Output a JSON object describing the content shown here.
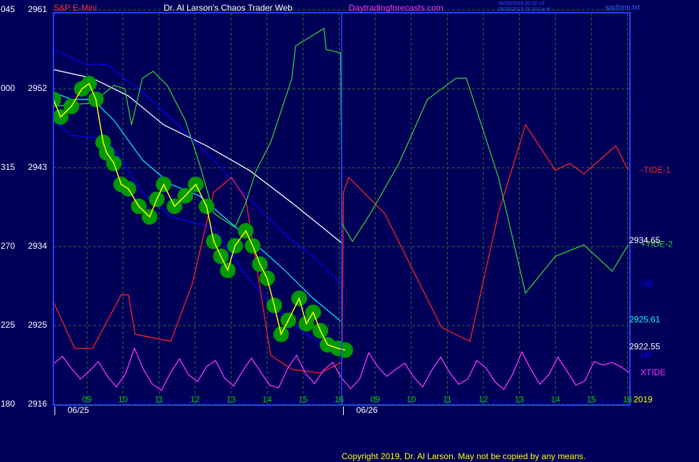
{
  "chart_data": {
    "type": "line",
    "title": "Dr. Al Larson's Chaos Trader Web",
    "instrument": "S&P E-Mini",
    "website": "Daytradingforecasts.com",
    "timestamp_lines": [
      "06/25/2019 20:20 UT",
      "06/25/2019 15:20 Local"
    ],
    "file_name": "spcform.txt",
    "copyright": "Copyright 2019, Dr. Al Larson. May not be copied by any means.",
    "year": "2019",
    "dates": [
      {
        "value": 0.07,
        "label": "06/25"
      },
      {
        "value": 8.08,
        "label": "06/26"
      }
    ],
    "xlim": [
      0.07,
      16.07
    ],
    "xticks": [
      {
        "value": 1,
        "label": "09"
      },
      {
        "value": 2,
        "label": "10"
      },
      {
        "value": 3,
        "label": "11"
      },
      {
        "value": 4,
        "label": "12"
      },
      {
        "value": 5,
        "label": "13"
      },
      {
        "value": 6,
        "label": "14"
      },
      {
        "value": 7,
        "label": "15"
      },
      {
        "value": 8,
        "label": "16"
      },
      {
        "value": 9,
        "label": "09"
      },
      {
        "value": 10,
        "label": "10"
      },
      {
        "value": 11,
        "label": "11"
      },
      {
        "value": 12,
        "label": "12"
      },
      {
        "value": 13,
        "label": "13"
      },
      {
        "value": 14,
        "label": "14"
      },
      {
        "value": 15,
        "label": "15"
      },
      {
        "value": 16,
        "label": "16"
      }
    ],
    "ylim": [
      2916,
      2961
    ],
    "yticks": [
      2916,
      2925,
      2934,
      2943,
      2952,
      2961
    ],
    "y2lim": [
      180,
      405
    ],
    "y2ticks": [
      180,
      225,
      270,
      315,
      {
        "value": 360,
        "label": "000"
      },
      {
        "value": 405,
        "label": "045"
      }
    ],
    "grid": true,
    "halo_color": "#009900",
    "price_labels": [
      {
        "value": 2934.65,
        "color": "#ffffff"
      },
      {
        "value": 2925.61,
        "color": "#00ffff"
      },
      {
        "value": 2922.55,
        "color": "#ffffff"
      }
    ],
    "series": [
      {
        "color": "#ffffff",
        "x": [
          0.07,
          1.16,
          2.15,
          3.13,
          4.32,
          5.51,
          6.69,
          8.08
        ],
        "values": [
          2954.2,
          2953.2,
          2951.2,
          2947.9,
          2945.5,
          2942.7,
          2939.0,
          2934.4
        ]
      },
      {
        "color": "#00e5ff",
        "x": [
          0.07,
          0.57,
          1.16,
          1.75,
          2.54,
          3.33,
          4.12,
          4.91,
          5.7,
          6.49,
          7.28,
          8.04
        ],
        "values": [
          2951.6,
          2950.8,
          2950.8,
          2948.4,
          2943.9,
          2941.1,
          2939.8,
          2937.0,
          2934.2,
          2931.3,
          2928.1,
          2925.5
        ]
      },
      {
        "name": "UB",
        "color": "#0000ff",
        "x": [
          0.07,
          0.96,
          1.55,
          2.54,
          3.53,
          4.52,
          5.51,
          6.49,
          7.28,
          8.08
        ],
        "values": [
          2956.5,
          2954.8,
          2954.8,
          2951.6,
          2947.9,
          2943.9,
          2939.4,
          2935.4,
          2932.9,
          2929.7
        ]
      },
      {
        "name": "LB",
        "color": "#0000ff",
        "x": [
          0.07,
          0.57,
          1.55,
          2.54,
          3.33,
          4.52,
          5.31,
          6.1,
          7.09,
          8.08
        ],
        "values": [
          2948.4,
          2946.7,
          2946.3,
          2940.2,
          2937.4,
          2936.2,
          2931.3,
          2927.3,
          2924.0,
          2921.6
        ]
      },
      {
        "name": "-TIDE-1",
        "color": "#ff2020",
        "x": [
          0.07,
          0.66,
          1.16,
          1.95,
          2.15,
          2.34,
          3.33,
          3.92,
          4.52,
          5.01,
          5.41,
          6.1,
          6.69,
          7.48,
          8.08,
          8.12,
          8.27,
          9.26,
          10.05,
          10.84,
          11.63,
          12.42,
          13.17,
          14.0,
          14.4,
          14.79,
          15.68,
          16.02
        ],
        "values": [
          2927.7,
          2922.4,
          2922.4,
          2928.5,
          2928.5,
          2924.0,
          2923.2,
          2929.7,
          2940.2,
          2941.9,
          2939.4,
          2921.6,
          2920.0,
          2919.6,
          2920.8,
          2940.2,
          2941.9,
          2937.8,
          2931.3,
          2924.8,
          2923.2,
          2937.8,
          2947.9,
          2942.7,
          2943.5,
          2942.3,
          2945.5,
          2942.7
        ]
      },
      {
        "name": "+TIDE-2",
        "color": "#33cc33",
        "x": [
          0.07,
          1.16,
          1.75,
          2.05,
          2.24,
          2.54,
          2.84,
          3.23,
          3.73,
          4.12,
          4.52,
          5.11,
          5.41,
          5.7,
          6.1,
          6.69,
          6.79,
          7.58,
          7.64,
          8.04,
          8.08,
          8.37,
          8.87,
          9.66,
          10.45,
          11.24,
          11.53,
          12.42,
          13.17,
          14.0,
          14.79,
          15.58,
          16.02
        ],
        "values": [
          2950.0,
          2950.4,
          2952.4,
          2952.0,
          2947.9,
          2953.2,
          2954.0,
          2952.4,
          2948.4,
          2943.5,
          2937.8,
          2936.2,
          2939.0,
          2942.7,
          2945.9,
          2953.2,
          2956.9,
          2958.9,
          2956.5,
          2956.1,
          2936.6,
          2934.6,
          2937.8,
          2943.5,
          2950.8,
          2953.2,
          2953.2,
          2941.9,
          2928.7,
          2932.9,
          2934.2,
          2931.2,
          2934.2
        ]
      },
      {
        "name": "XTIDE",
        "color": "#ff33ff",
        "x": [
          0.07,
          0.32,
          0.57,
          0.82,
          1.07,
          1.32,
          1.57,
          1.82,
          2.07,
          2.32,
          2.57,
          2.82,
          3.07,
          3.32,
          3.57,
          3.82,
          4.07,
          4.32,
          4.57,
          4.82,
          5.07,
          5.32,
          5.57,
          5.82,
          6.07,
          6.32,
          6.57,
          6.82,
          7.07,
          7.32,
          7.57,
          7.82,
          8.07,
          8.32,
          8.57,
          8.82,
          9.07,
          9.32,
          9.57,
          9.82,
          10.07,
          10.32,
          10.57,
          10.82,
          11.07,
          11.32,
          11.57,
          11.82,
          12.07,
          12.32,
          12.57,
          12.82,
          13.07,
          13.32,
          13.57,
          13.82,
          14.07,
          14.32,
          14.57,
          14.82,
          15.07,
          15.32,
          15.57,
          15.82,
          16.07
        ],
        "values": [
          2920.6,
          2921.5,
          2920.1,
          2918.9,
          2919.8,
          2920.9,
          2919.2,
          2918.0,
          2919.5,
          2922.4,
          2920.0,
          2918.3,
          2917.6,
          2919.6,
          2921.2,
          2919.4,
          2918.6,
          2920.3,
          2921.0,
          2919.0,
          2918.1,
          2919.8,
          2921.3,
          2919.7,
          2918.2,
          2917.9,
          2920.1,
          2921.6,
          2919.5,
          2918.4,
          2919.9,
          2920.8,
          2919.0,
          2917.8,
          2918.9,
          2921.9,
          2920.3,
          2919.2,
          2920.0,
          2920.7,
          2919.1,
          2918.0,
          2919.9,
          2921.4,
          2919.6,
          2918.3,
          2918.9,
          2921.0,
          2920.2,
          2918.6,
          2917.7,
          2919.5,
          2922.0,
          2920.0,
          2918.3,
          2919.4,
          2921.4,
          2919.8,
          2918.2,
          2918.7,
          2920.9,
          2920.5,
          2920.8,
          2920.3,
          2919.6
        ]
      },
      {
        "color": "#ffff00",
        "halo": true,
        "x": [
          0.07,
          0.27,
          0.57,
          0.86,
          1.06,
          1.25,
          1.45,
          1.55,
          1.75,
          1.95,
          2.15,
          2.44,
          2.74,
          2.94,
          3.13,
          3.43,
          3.73,
          4.02,
          4.32,
          4.52,
          4.72,
          4.91,
          5.11,
          5.41,
          5.6,
          5.8,
          6.0,
          6.2,
          6.39,
          6.59,
          6.89,
          7.09,
          7.28,
          7.48,
          7.68,
          7.97,
          8.17
        ],
        "values": [
          2950.8,
          2948.8,
          2950.0,
          2952.0,
          2952.6,
          2950.8,
          2945.9,
          2944.7,
          2943.5,
          2941.1,
          2940.6,
          2938.6,
          2937.4,
          2939.4,
          2941.1,
          2938.6,
          2939.8,
          2941.1,
          2938.6,
          2934.6,
          2932.9,
          2931.3,
          2934.1,
          2935.8,
          2934.1,
          2932.0,
          2930.4,
          2927.3,
          2924.0,
          2925.6,
          2928.1,
          2925.2,
          2926.5,
          2924.4,
          2922.8,
          2922.4,
          2922.2
        ]
      }
    ]
  }
}
